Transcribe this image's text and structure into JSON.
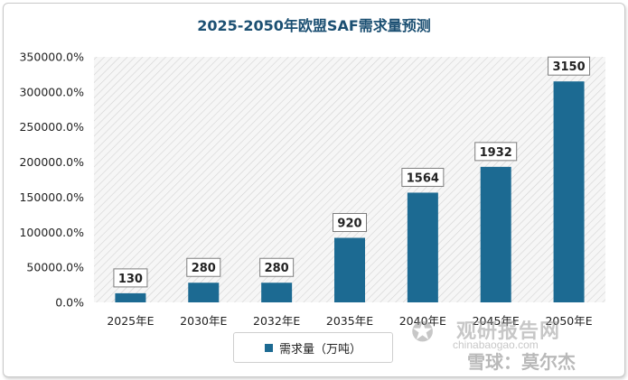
{
  "chart_data": {
    "type": "bar",
    "title": "2025-2050年欧盟SAF需求量预测",
    "categories": [
      "2025年E",
      "2030年E",
      "2032年E",
      "2035年E",
      "2040年E",
      "2045年E",
      "2050年E"
    ],
    "series": [
      {
        "name": "需求量（万吨）",
        "values": [
          130,
          280,
          280,
          920,
          1564,
          1932,
          3150
        ],
        "color": "#1c6a92"
      }
    ],
    "data_labels": [
      "130",
      "280",
      "280",
      "920",
      "1564",
      "1932",
      "3150"
    ],
    "y_ticks": [
      "0.0%",
      "50000.0%",
      "100000.0%",
      "150000.0%",
      "200000.0%",
      "250000.0%",
      "300000.0%",
      "350000.0%"
    ],
    "ylim": [
      0,
      3500
    ],
    "ylabel": "",
    "xlabel": "",
    "legend_position": "bottom"
  },
  "watermark": {
    "logo_glyph": "✪",
    "brand": "观研报告网",
    "url": "chinabaogao.com",
    "xueqiu": "雪球：莫尔杰"
  }
}
